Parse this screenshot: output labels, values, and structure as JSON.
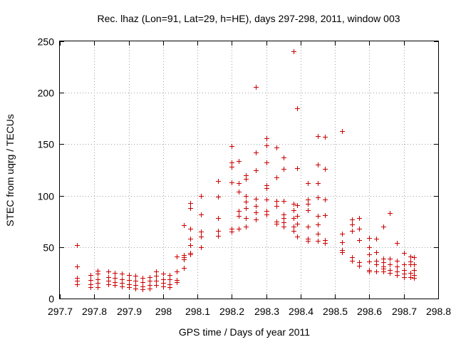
{
  "chart_data": {
    "type": "scatter",
    "title": "Rec. lhaz (Lon=91, Lat=29, h=HE), days 297-298, 2011, window 003",
    "xlabel": "GPS time / Days of year 2011",
    "ylabel": "STEC from uqrg / TECUs",
    "xlim": [
      297.7,
      298.8
    ],
    "ylim": [
      0,
      250
    ],
    "xticks": [
      297.7,
      297.8,
      297.9,
      298.0,
      298.1,
      298.2,
      298.3,
      298.4,
      298.5,
      298.6,
      298.7,
      298.8
    ],
    "xtick_labels": [
      "297.7",
      "297.8",
      "297.9",
      "298",
      "298.1",
      "298.2",
      "298.3",
      "298.4",
      "298.5",
      "298.6",
      "298.7",
      "298.8"
    ],
    "yticks": [
      0,
      50,
      100,
      150,
      200,
      250
    ],
    "ytick_labels": [
      "0",
      "50",
      "100",
      "150",
      "200",
      "250"
    ],
    "grid": true,
    "marker": "+",
    "series": [
      {
        "name": "STEC",
        "color": "#cc0000",
        "points": [
          [
            297.75,
            52
          ],
          [
            297.75,
            31
          ],
          [
            297.75,
            20
          ],
          [
            297.75,
            17
          ],
          [
            297.75,
            14
          ],
          [
            297.79,
            23
          ],
          [
            297.79,
            18
          ],
          [
            297.79,
            14
          ],
          [
            297.79,
            11
          ],
          [
            297.81,
            27
          ],
          [
            297.81,
            24
          ],
          [
            297.81,
            19
          ],
          [
            297.81,
            15
          ],
          [
            297.81,
            11
          ],
          [
            297.84,
            26
          ],
          [
            297.84,
            21
          ],
          [
            297.84,
            17
          ],
          [
            297.84,
            14
          ],
          [
            297.86,
            25
          ],
          [
            297.86,
            20
          ],
          [
            297.86,
            16
          ],
          [
            297.86,
            13
          ],
          [
            297.88,
            24
          ],
          [
            297.88,
            19
          ],
          [
            297.88,
            15
          ],
          [
            297.88,
            12
          ],
          [
            297.9,
            23
          ],
          [
            297.9,
            18
          ],
          [
            297.9,
            14
          ],
          [
            297.9,
            11
          ],
          [
            297.92,
            22
          ],
          [
            297.92,
            17
          ],
          [
            297.92,
            13
          ],
          [
            297.92,
            10
          ],
          [
            297.94,
            20
          ],
          [
            297.94,
            16
          ],
          [
            297.94,
            12
          ],
          [
            297.94,
            9
          ],
          [
            297.96,
            21
          ],
          [
            297.96,
            17
          ],
          [
            297.96,
            13
          ],
          [
            297.96,
            10
          ],
          [
            297.98,
            26
          ],
          [
            297.98,
            22
          ],
          [
            297.98,
            17
          ],
          [
            297.98,
            13
          ],
          [
            298.0,
            24
          ],
          [
            298.0,
            19
          ],
          [
            298.0,
            15
          ],
          [
            298.0,
            12
          ],
          [
            298.02,
            23
          ],
          [
            298.02,
            19
          ],
          [
            298.02,
            14
          ],
          [
            298.02,
            11
          ],
          [
            298.04,
            41
          ],
          [
            298.04,
            26
          ],
          [
            298.04,
            18
          ],
          [
            298.04,
            16
          ],
          [
            298.06,
            71
          ],
          [
            298.06,
            42
          ],
          [
            298.06,
            40
          ],
          [
            298.06,
            38
          ],
          [
            298.06,
            30
          ],
          [
            298.08,
            93
          ],
          [
            298.08,
            88
          ],
          [
            298.08,
            68
          ],
          [
            298.08,
            58
          ],
          [
            298.08,
            52
          ],
          [
            298.08,
            44
          ],
          [
            298.08,
            43
          ],
          [
            298.11,
            100
          ],
          [
            298.11,
            82
          ],
          [
            298.11,
            65
          ],
          [
            298.11,
            60
          ],
          [
            298.11,
            50
          ],
          [
            298.16,
            114
          ],
          [
            298.16,
            99
          ],
          [
            298.16,
            78
          ],
          [
            298.16,
            66
          ],
          [
            298.16,
            61
          ],
          [
            298.2,
            148
          ],
          [
            298.2,
            132
          ],
          [
            298.2,
            128
          ],
          [
            298.2,
            113
          ],
          [
            298.2,
            68
          ],
          [
            298.2,
            65
          ],
          [
            298.22,
            134
          ],
          [
            298.22,
            112
          ],
          [
            298.22,
            104
          ],
          [
            298.22,
            85
          ],
          [
            298.22,
            80
          ],
          [
            298.22,
            68
          ],
          [
            298.24,
            120
          ],
          [
            298.24,
            116
          ],
          [
            298.24,
            100
          ],
          [
            298.24,
            94
          ],
          [
            298.24,
            88
          ],
          [
            298.24,
            78
          ],
          [
            298.24,
            70
          ],
          [
            298.27,
            206
          ],
          [
            298.27,
            142
          ],
          [
            298.27,
            125
          ],
          [
            298.27,
            97
          ],
          [
            298.27,
            90
          ],
          [
            298.27,
            84
          ],
          [
            298.27,
            77
          ],
          [
            298.3,
            156
          ],
          [
            298.3,
            149
          ],
          [
            298.3,
            132
          ],
          [
            298.3,
            110
          ],
          [
            298.3,
            107
          ],
          [
            298.3,
            96
          ],
          [
            298.3,
            85
          ],
          [
            298.3,
            82
          ],
          [
            298.33,
            147
          ],
          [
            298.33,
            118
          ],
          [
            298.33,
            95
          ],
          [
            298.33,
            90
          ],
          [
            298.33,
            75
          ],
          [
            298.33,
            73
          ],
          [
            298.35,
            137
          ],
          [
            298.35,
            126
          ],
          [
            298.35,
            95
          ],
          [
            298.35,
            82
          ],
          [
            298.35,
            78
          ],
          [
            298.35,
            74
          ],
          [
            298.35,
            70
          ],
          [
            298.38,
            240
          ],
          [
            298.38,
            92
          ],
          [
            298.38,
            86
          ],
          [
            298.38,
            78
          ],
          [
            298.38,
            70
          ],
          [
            298.38,
            66
          ],
          [
            298.39,
            185
          ],
          [
            298.39,
            127
          ],
          [
            298.39,
            91
          ],
          [
            298.39,
            80
          ],
          [
            298.39,
            73
          ],
          [
            298.39,
            60
          ],
          [
            298.42,
            112
          ],
          [
            298.42,
            96
          ],
          [
            298.42,
            92
          ],
          [
            298.42,
            86
          ],
          [
            298.42,
            70
          ],
          [
            298.42,
            58
          ],
          [
            298.42,
            56
          ],
          [
            298.45,
            158
          ],
          [
            298.45,
            130
          ],
          [
            298.45,
            112
          ],
          [
            298.45,
            98
          ],
          [
            298.45,
            80
          ],
          [
            298.45,
            72
          ],
          [
            298.45,
            63
          ],
          [
            298.45,
            56
          ],
          [
            298.47,
            157
          ],
          [
            298.47,
            126
          ],
          [
            298.47,
            96
          ],
          [
            298.47,
            81
          ],
          [
            298.47,
            57
          ],
          [
            298.47,
            54
          ],
          [
            298.52,
            163
          ],
          [
            298.52,
            63
          ],
          [
            298.52,
            55
          ],
          [
            298.52,
            47
          ],
          [
            298.52,
            45
          ],
          [
            298.55,
            77
          ],
          [
            298.55,
            72
          ],
          [
            298.55,
            66
          ],
          [
            298.55,
            40
          ],
          [
            298.55,
            37
          ],
          [
            298.57,
            78
          ],
          [
            298.57,
            68
          ],
          [
            298.57,
            57
          ],
          [
            298.57,
            35
          ],
          [
            298.57,
            32
          ],
          [
            298.6,
            59
          ],
          [
            298.6,
            50
          ],
          [
            298.6,
            43
          ],
          [
            298.6,
            36
          ],
          [
            298.6,
            28
          ],
          [
            298.6,
            26
          ],
          [
            298.62,
            58
          ],
          [
            298.62,
            45
          ],
          [
            298.62,
            37
          ],
          [
            298.62,
            33
          ],
          [
            298.62,
            26
          ],
          [
            298.64,
            70
          ],
          [
            298.64,
            39
          ],
          [
            298.64,
            35
          ],
          [
            298.64,
            31
          ],
          [
            298.64,
            29
          ],
          [
            298.64,
            26
          ],
          [
            298.66,
            83
          ],
          [
            298.66,
            39
          ],
          [
            298.66,
            33
          ],
          [
            298.66,
            28
          ],
          [
            298.66,
            25
          ],
          [
            298.68,
            54
          ],
          [
            298.68,
            37
          ],
          [
            298.68,
            31
          ],
          [
            298.68,
            26
          ],
          [
            298.68,
            23
          ],
          [
            298.7,
            44
          ],
          [
            298.7,
            33
          ],
          [
            298.7,
            28
          ],
          [
            298.7,
            24
          ],
          [
            298.7,
            21
          ],
          [
            298.72,
            41
          ],
          [
            298.72,
            36
          ],
          [
            298.72,
            33
          ],
          [
            298.72,
            25
          ],
          [
            298.72,
            21
          ],
          [
            298.73,
            40
          ],
          [
            298.73,
            33
          ],
          [
            298.73,
            28
          ],
          [
            298.73,
            23
          ],
          [
            298.73,
            20
          ]
        ]
      }
    ]
  }
}
